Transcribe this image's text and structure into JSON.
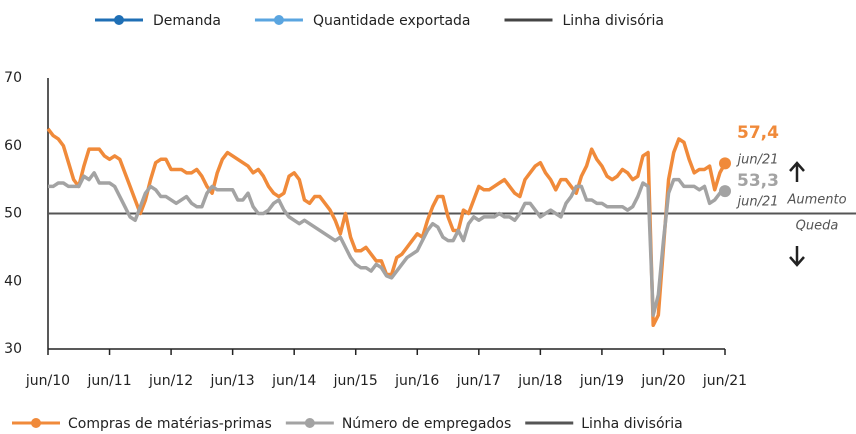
{
  "chart_data": {
    "type": "line",
    "legend_top": [
      {
        "name": "Demanda",
        "color": "#1f6fb5"
      },
      {
        "name": "Quantidade exportada",
        "color": "#5aa5e0"
      },
      {
        "name": "Linha divisória",
        "color": "#444444"
      }
    ],
    "categories": [
      "jun/10",
      null,
      null,
      null,
      null,
      null,
      null,
      null,
      null,
      null,
      null,
      null,
      "jun/11",
      null,
      null,
      null,
      null,
      null,
      null,
      null,
      null,
      null,
      null,
      null,
      "jun/12",
      null,
      null,
      null,
      null,
      null,
      null,
      null,
      null,
      null,
      null,
      null,
      "jun/13",
      null,
      null,
      null,
      null,
      null,
      null,
      null,
      null,
      null,
      null,
      null,
      "jun/14",
      null,
      null,
      null,
      null,
      null,
      null,
      null,
      null,
      null,
      null,
      null,
      "jun/15",
      null,
      null,
      null,
      null,
      null,
      null,
      null,
      null,
      null,
      null,
      null,
      "jun/16",
      null,
      null,
      null,
      null,
      null,
      null,
      null,
      null,
      null,
      null,
      null,
      "jun/17",
      null,
      null,
      null,
      null,
      null,
      null,
      null,
      null,
      null,
      null,
      null,
      "jun/18",
      null,
      null,
      null,
      null,
      null,
      null,
      null,
      null,
      null,
      null,
      null,
      "jun/19",
      null,
      null,
      null,
      null,
      null,
      null,
      null,
      null,
      null,
      null,
      null,
      "jun/20",
      null,
      null,
      null,
      null,
      null,
      null,
      null,
      null,
      null,
      null,
      null,
      "jun/21"
    ],
    "series": [
      {
        "name": "Compras de matérias-primas",
        "color": "#f08a3a",
        "values": [
          62.5,
          61.5,
          61,
          60,
          57.5,
          55,
          54,
          57,
          59.5,
          59.5,
          59.5,
          58.5,
          58,
          58.5,
          58,
          56,
          54,
          52,
          50,
          52,
          55,
          57.5,
          58,
          58,
          56.5,
          56.5,
          56.5,
          56,
          56,
          56.5,
          55.5,
          54,
          53,
          56,
          58,
          59,
          58.5,
          58,
          57.5,
          57,
          56,
          56.5,
          55.5,
          54,
          53,
          52.5,
          53,
          55.5,
          56,
          55,
          52,
          51.5,
          52.5,
          52.5,
          51.5,
          50.5,
          49,
          47,
          50,
          46.5,
          44.5,
          44.5,
          45,
          44,
          43,
          43,
          41,
          41,
          43.5,
          44,
          45,
          46,
          47,
          46.5,
          49,
          51,
          52.5,
          52.5,
          49.5,
          47.5,
          47.5,
          50.5,
          50,
          52,
          54,
          53.5,
          53.5,
          54,
          54.5,
          55,
          54,
          53,
          52.5,
          55,
          56,
          57,
          57.5,
          56,
          55,
          53.5,
          55,
          55,
          54,
          53,
          55.5,
          57,
          59.5,
          58,
          57,
          55.5,
          55,
          55.5,
          56.5,
          56,
          55,
          55.5,
          58.5,
          59,
          33.5,
          35,
          45,
          55,
          59,
          61,
          60.5,
          58,
          56,
          56.5,
          56.5,
          57,
          53.5,
          56,
          57.4
        ],
        "value_labels": [
          null,
          null,
          null,
          null,
          null,
          null,
          null,
          null,
          null,
          null,
          null,
          null,
          null,
          null,
          null,
          null,
          null,
          null,
          null,
          null,
          null,
          null,
          null,
          null,
          null,
          null,
          null,
          null,
          null,
          null,
          null,
          null,
          null,
          null,
          null,
          null,
          null,
          null,
          null,
          null,
          null,
          null,
          null,
          null,
          null,
          null,
          null,
          null,
          null,
          null,
          null,
          null,
          null,
          null,
          null,
          null,
          null,
          null,
          null,
          null,
          null,
          null,
          null,
          null,
          null,
          null,
          null,
          null,
          null,
          null,
          null,
          null,
          null,
          null,
          null,
          null,
          null,
          null,
          null,
          null,
          null,
          null,
          null,
          null,
          null,
          null,
          null,
          null,
          null,
          null,
          null,
          null,
          null,
          null,
          null,
          null,
          null,
          null,
          null,
          null,
          null,
          null,
          null,
          null,
          null,
          null,
          null,
          null,
          null,
          null,
          null,
          null,
          null,
          null,
          null,
          null,
          null,
          null,
          null,
          null,
          null,
          null,
          null,
          null,
          null,
          null,
          null,
          null,
          null,
          null,
          null,
          null,
          "57,4"
        ]
      },
      {
        "name": "Número de empregados",
        "color": "#a3a3a3",
        "values": [
          54,
          54,
          54.5,
          54.5,
          54,
          54,
          54,
          55.5,
          55,
          56,
          54.5,
          54.5,
          54.5,
          54,
          52.5,
          51,
          49.5,
          49,
          51,
          53,
          54,
          53.5,
          52.5,
          52.5,
          52,
          51.5,
          52,
          52.5,
          51.5,
          51,
          51,
          53,
          54,
          53.5,
          53.5,
          53.5,
          53.5,
          52,
          52,
          53,
          51,
          50,
          50,
          50.5,
          51.5,
          52,
          50.5,
          49.5,
          49,
          48.5,
          49,
          48.5,
          48,
          47.5,
          47,
          46.5,
          46,
          46.5,
          45,
          43.5,
          42.5,
          42,
          42,
          41.5,
          42.5,
          42,
          40.8,
          40.5,
          41.5,
          42.5,
          43.5,
          44,
          44.5,
          46,
          47.5,
          48.5,
          48,
          46.5,
          46,
          46,
          47.5,
          46,
          48.5,
          49.5,
          49,
          49.5,
          49.5,
          49.5,
          50,
          49.5,
          49.5,
          49,
          50,
          51.5,
          51.5,
          50.5,
          49.5,
          50,
          50.5,
          50,
          49.5,
          51.5,
          52.5,
          54,
          54,
          52,
          52,
          51.5,
          51.5,
          51,
          51,
          51,
          51,
          50.5,
          51,
          52.5,
          54.5,
          54,
          35,
          38,
          46,
          53,
          55,
          55,
          54,
          54,
          54,
          53.5,
          54,
          51.5,
          52,
          53,
          53.3
        ],
        "value_labels": [
          null,
          null,
          null,
          null,
          null,
          null,
          null,
          null,
          null,
          null,
          null,
          null,
          null,
          null,
          null,
          null,
          null,
          null,
          null,
          null,
          null,
          null,
          null,
          null,
          null,
          null,
          null,
          null,
          null,
          null,
          null,
          null,
          null,
          null,
          null,
          null,
          null,
          null,
          null,
          null,
          null,
          null,
          null,
          null,
          null,
          null,
          null,
          null,
          null,
          null,
          null,
          null,
          null,
          null,
          null,
          null,
          null,
          null,
          null,
          null,
          null,
          null,
          null,
          null,
          null,
          null,
          null,
          null,
          null,
          null,
          null,
          null,
          null,
          null,
          null,
          null,
          null,
          null,
          null,
          null,
          null,
          null,
          null,
          null,
          null,
          null,
          null,
          null,
          null,
          null,
          null,
          null,
          null,
          null,
          null,
          null,
          null,
          null,
          null,
          null,
          null,
          null,
          null,
          null,
          null,
          null,
          null,
          null,
          null,
          null,
          null,
          null,
          null,
          null,
          null,
          null,
          null,
          null,
          null,
          null,
          null,
          null,
          null,
          null,
          null,
          null,
          null,
          null,
          null,
          null,
          null,
          null,
          "53,3"
        ]
      }
    ],
    "reference_line": {
      "value": 50,
      "name": "Linha divisória",
      "color": "#555555"
    },
    "annotations": [
      "jun/21",
      "jun/21",
      "Aumento",
      "Queda"
    ],
    "ylim": [
      30,
      70
    ],
    "yticks": [
      30,
      40,
      50,
      60,
      70
    ]
  }
}
